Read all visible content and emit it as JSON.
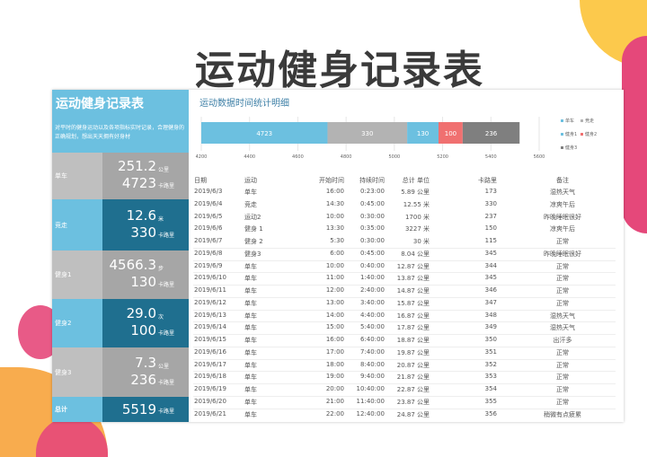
{
  "title": "运动健身记录表",
  "left": {
    "title": "运动健身记录表",
    "desc": "对平时的健身运动以及各项指标实时记录，合理健身的正确规划，想出天天拥有好身材",
    "rows": [
      {
        "label": "单车",
        "value1": "251.2",
        "unit1": "公里",
        "value2": "4723",
        "unit2": "卡路里",
        "style": "gray"
      },
      {
        "label": "竞走",
        "value1": "12.6",
        "unit1": "米",
        "value2": "330",
        "unit2": "卡路里",
        "style": "blue"
      },
      {
        "label": "健身1",
        "value1": "4566.3",
        "unit1": "步",
        "value2": "130",
        "unit2": "卡路里",
        "style": "gray"
      },
      {
        "label": "健身2",
        "value1": "29.0",
        "unit1": "次",
        "value2": "100",
        "unit2": "卡路里",
        "style": "blue"
      },
      {
        "label": "健身3",
        "value1": "7.3",
        "unit1": "公里",
        "value2": "236",
        "unit2": "卡路里",
        "style": "gray"
      }
    ],
    "total": {
      "label": "总计",
      "value": "5519",
      "unit": "卡路里"
    }
  },
  "colors": {
    "light_blue": "#6cc0e0",
    "dark_teal": "#1f6f8f",
    "light_gray": "#bfbfbf",
    "mid_gray": "#a6a6a6",
    "red": "#f07070",
    "dark_gray": "#7f7f7f"
  },
  "chart_title": "运动数据时间统计明细",
  "chart_data": {
    "type": "bar",
    "orientation": "horizontal-stacked",
    "series": [
      {
        "name": "单车",
        "value": 4723,
        "color": "#6cc0e0"
      },
      {
        "name": "竞走",
        "value": 330,
        "color": "#b3b3b3"
      },
      {
        "name": "健身1",
        "value": 130,
        "color": "#6cc0e0"
      },
      {
        "name": "健身2",
        "value": 100,
        "color": "#f07070"
      },
      {
        "name": "健身3",
        "value": 236,
        "color": "#7f7f7f"
      }
    ],
    "xlim": [
      4200,
      5600
    ],
    "xticks": [
      "4200",
      "4400",
      "4600",
      "4800",
      "5000",
      "5200",
      "5400",
      "5600"
    ],
    "legend": "right",
    "grid": true
  },
  "table": {
    "headers": [
      "日期",
      "运动",
      "开始时间",
      "持续时间",
      "总计 单位",
      "卡路里",
      "备注"
    ],
    "rows": [
      [
        "2019/6/3",
        "单车",
        "16:00",
        "0:23:00",
        "5.89 公里",
        "173",
        "湿热天气"
      ],
      [
        "2019/6/4",
        "竞走",
        "14:30",
        "0:45:00",
        "12.55 米",
        "330",
        "凉爽午后"
      ],
      [
        "2019/6/5",
        "运动2",
        "10:00",
        "0:30:00",
        "1700 米",
        "237",
        "昨晚睡眠很好"
      ],
      [
        "2019/6/6",
        "健身 1",
        "13:30",
        "0:35:00",
        "3227 米",
        "150",
        "凉爽午后"
      ],
      [
        "2019/6/7",
        "健身 2",
        "5:30",
        "0:30:00",
        "30 米",
        "115",
        "正常"
      ],
      [
        "2019/6/8",
        "健身3",
        "6:00",
        "0:45:00",
        "8.04 公里",
        "345",
        "昨晚睡眠很好"
      ],
      [
        "2019/6/9",
        "单车",
        "10:00",
        "0:40:00",
        "12.87 公里",
        "344",
        "正常"
      ],
      [
        "2019/6/10",
        "单车",
        "11:00",
        "1:40:00",
        "13.87 公里",
        "345",
        "正常"
      ],
      [
        "2019/6/11",
        "单车",
        "12:00",
        "2:40:00",
        "14.87 公里",
        "346",
        "正常"
      ],
      [
        "2019/6/12",
        "单车",
        "13:00",
        "3:40:00",
        "15.87 公里",
        "347",
        "正常"
      ],
      [
        "2019/6/13",
        "单车",
        "14:00",
        "4:40:00",
        "16.87 公里",
        "348",
        "湿热天气"
      ],
      [
        "2019/6/14",
        "单车",
        "15:00",
        "5:40:00",
        "17.87 公里",
        "349",
        "湿热天气"
      ],
      [
        "2019/6/15",
        "单车",
        "16:00",
        "6:40:00",
        "18.87 公里",
        "350",
        "出汗多"
      ],
      [
        "2019/6/16",
        "单车",
        "17:00",
        "7:40:00",
        "19.87 公里",
        "351",
        "正常"
      ],
      [
        "2019/6/17",
        "单车",
        "18:00",
        "8:40:00",
        "20.87 公里",
        "352",
        "正常"
      ],
      [
        "2019/6/18",
        "单车",
        "19:00",
        "9:40:00",
        "21.87 公里",
        "353",
        "正常"
      ],
      [
        "2019/6/19",
        "单车",
        "20:00",
        "10:40:00",
        "22.87 公里",
        "354",
        "正常"
      ],
      [
        "2019/6/20",
        "单车",
        "21:00",
        "11:40:00",
        "23.87 公里",
        "355",
        "正常"
      ],
      [
        "2019/6/21",
        "单车",
        "22:00",
        "12:40:00",
        "24.87 公里",
        "356",
        "稍微有点疲累"
      ]
    ]
  }
}
